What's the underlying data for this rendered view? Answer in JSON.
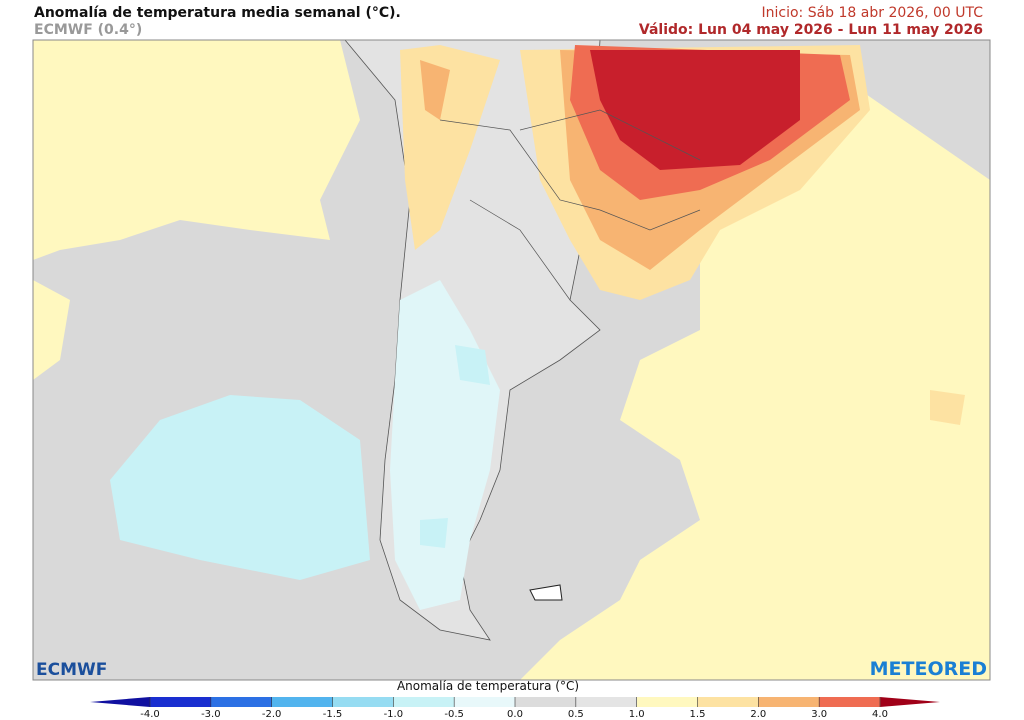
{
  "header": {
    "title": "Anomalía de temperatura media semanal (°C).",
    "subtitle": "ECMWF (0.4°)",
    "init": "Inicio: Sáb 18 abr 2026, 00 UTC",
    "valid": "Válido: Lun 04 may 2026 - Lun 11 may 2026"
  },
  "logos": {
    "left": "ECMWF",
    "right": "METEORED"
  },
  "legend": {
    "label": "Anomalía de temperatura (°C)",
    "ticks": [
      "-4.0",
      "-3.0",
      "-2.0",
      "-1.5",
      "-1.0",
      "-0.5",
      "0.0",
      "0.5",
      "1.0",
      "1.5",
      "2.0",
      "3.0",
      "4.0"
    ],
    "colors": [
      "#1a2fd0",
      "#2c70e4",
      "#52b4ee",
      "#96dcf2",
      "#c8f2f6",
      "#e8f8fa",
      "#dcdcdc",
      "#e4e4e4",
      "#fff8bf",
      "#fde2a2",
      "#f7b472",
      "#ef6c52",
      "#c81f2c"
    ],
    "under_color": "#1010a0",
    "over_color": "#a00018"
  }
}
